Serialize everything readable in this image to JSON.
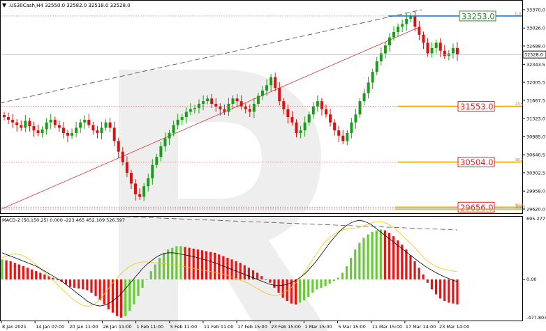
{
  "window": {
    "symbol_line": ".US30Cash,H4  32550.0 32582.0 32518.0 32528.0",
    "collapse_arrow": "▼"
  },
  "price_axis": {
    "ticks": [
      "33370.0",
      "33026.0",
      "32688.0",
      "32343.5",
      "32005.5",
      "31667.5",
      "31323.0",
      "30985.0",
      "30640.5",
      "30302.5",
      "29958.0",
      "29620.0"
    ],
    "current_price": "32528.0"
  },
  "fib_levels": [
    {
      "ratio": "0.0",
      "price_label": "33253.0",
      "line_color": "#1e78c8",
      "box_border": "#2e8b2e"
    },
    {
      "ratio": "23.6",
      "price_label": "31553.0",
      "line_color": "#f0a000",
      "box_border": "#e02020"
    },
    {
      "ratio": "38.2",
      "price_label": "30504.0",
      "line_color": "#f0a000",
      "box_border": "#e02020"
    },
    {
      "ratio": "50.0",
      "price_label": "29656.0",
      "line_color": "#f0a000",
      "box_border": "#e02020"
    },
    {
      "ratio": "100.0",
      "price_label": "",
      "line_color": "#f0a000",
      "box_border": ""
    }
  ],
  "macd": {
    "label": "MACD-2 (50,150,25) 0.000 -223.465 452.109 526.597",
    "axis": {
      "top": "695.277",
      "zero": "0.00",
      "bottom": "-477.803"
    }
  },
  "time_axis": [
    "8 Jan 2021",
    "14 Jan 07:00",
    "20 Jan 11:00",
    "26 Jan 11:00",
    "1 Feb 11:00",
    "5 Feb 11:00",
    "11 Feb 11:00",
    "17 Feb 15:00",
    "23 Feb 15:00",
    "1 Mar 15:00",
    "5 Mar 15:00",
    "11 Mar 15:00",
    "17 Mar 14:00",
    "23 Mar 14:00"
  ],
  "colors": {
    "bull": "#1a9e1a",
    "bear": "#e01010",
    "hist_green": "#66cc33",
    "hist_red": "#ee1111",
    "trend_red": "#e03030",
    "trend_dash": "#555555",
    "dotted_red": "#e05050",
    "watermark": "#e8e8e8"
  },
  "chart_data": {
    "type": "candlestick",
    "series": [
      {
        "name": "price",
        "close": [
          31350,
          31300,
          31250,
          31200,
          31150,
          31280,
          31180,
          31100,
          31050,
          31120,
          31250,
          31300,
          31200,
          31150,
          31050,
          31000,
          31050,
          31150,
          31250,
          31300,
          31200,
          31100,
          31050,
          31150,
          31250,
          31150,
          30900,
          30700,
          30500,
          30300,
          30100,
          29900,
          29850,
          30050,
          30200,
          30450,
          30600,
          30800,
          30950,
          31050,
          31200,
          31300,
          31350,
          31450,
          31500,
          31520,
          31600,
          31650,
          31700,
          31600,
          31550,
          31500,
          31450,
          31600,
          31700,
          31650,
          31550,
          31500,
          31450,
          31600,
          31750,
          31850,
          31950,
          32100,
          31900,
          31650,
          31500,
          31350,
          31250,
          31050,
          31100,
          31250,
          31400,
          31550,
          31650,
          31500,
          31400,
          31250,
          31100,
          31000,
          30900,
          31050,
          31250,
          31400,
          31650,
          31800,
          32000,
          32200,
          32400,
          32550,
          32700,
          32850,
          32950,
          33050,
          33100,
          33200,
          33253,
          33050,
          32900,
          32750,
          32550,
          32650,
          32750,
          32600,
          32500,
          32550,
          32650,
          32528
        ]
      }
    ],
    "price_min": 29620,
    "price_max": 33370,
    "macd_hist": [
      240,
      230,
      220,
      200,
      180,
      160,
      140,
      120,
      100,
      80,
      60,
      40,
      20,
      -10,
      -30,
      -60,
      -90,
      -100,
      -110,
      -120,
      -130,
      -160,
      -200,
      -250,
      -300,
      -360,
      -400,
      -440,
      -460,
      -440,
      -380,
      -300,
      -200,
      -100,
      0,
      100,
      180,
      260,
      320,
      360,
      380,
      400,
      400,
      390,
      380,
      370,
      360,
      350,
      340,
      330,
      320,
      300,
      280,
      260,
      240,
      220,
      200,
      170,
      140,
      110,
      80,
      40,
      0,
      -40,
      -100,
      -160,
      -220,
      -260,
      -290,
      -300,
      -280,
      -250,
      -210,
      -160,
      -120,
      -100,
      -80,
      -50,
      -20,
      20,
      80,
      160,
      260,
      360,
      440,
      500,
      540,
      570,
      590,
      600,
      590,
      560,
      520,
      470,
      420,
      360,
      290,
      220,
      140,
      60,
      -40,
      -120,
      -180,
      -230,
      -260,
      -280,
      -290,
      -300
    ],
    "macd_signal": [
      260,
      280,
      300,
      310,
      300,
      280,
      250,
      210,
      170,
      120,
      70,
      20,
      -30,
      -80,
      -130,
      -180,
      -230,
      -270,
      -300,
      -320,
      -320,
      -300,
      -260,
      -200,
      -130,
      -60,
      0,
      60,
      110,
      150,
      180,
      200,
      210,
      210,
      205,
      200,
      195,
      190,
      185,
      180,
      170,
      160,
      150,
      140,
      130,
      120,
      110,
      100,
      90,
      80,
      70,
      60,
      40,
      20,
      0,
      -20,
      -40,
      -70,
      -100,
      -130,
      -160,
      -180,
      -190,
      -190,
      -170,
      -140,
      -100,
      -50,
      10,
      80,
      160,
      240,
      320,
      400,
      460,
      510,
      550,
      580,
      600,
      610,
      615,
      620,
      630,
      650,
      670,
      690,
      695,
      690,
      670,
      640,
      600,
      550,
      500,
      450,
      400,
      340,
      280,
      230,
      190,
      160,
      140,
      120,
      110,
      100,
      95
    ],
    "macd_main": [
      320,
      300,
      280,
      260,
      240,
      220,
      200,
      180,
      160,
      130,
      100,
      70,
      40,
      10,
      -20,
      -60,
      -100,
      -140,
      -180,
      -220,
      -260,
      -290,
      -310,
      -320,
      -310,
      -290,
      -260,
      -220,
      -170,
      -110,
      -50,
      10,
      70,
      130,
      180,
      220,
      260,
      290,
      310,
      320,
      320,
      315,
      305,
      295,
      285,
      275,
      260,
      245,
      230,
      215,
      200,
      180,
      160,
      140,
      120,
      100,
      80,
      60,
      40,
      20,
      0,
      -20,
      -40,
      -60,
      -70,
      -75,
      -70,
      -60,
      -40,
      -10,
      20,
      60,
      110,
      170,
      230,
      300,
      370,
      440,
      500,
      560,
      610,
      650,
      680,
      700,
      710,
      700,
      680,
      650,
      610,
      570,
      530,
      490,
      450,
      410,
      370,
      330,
      290,
      250,
      210,
      175,
      140,
      110,
      80,
      55,
      30,
      10,
      -10,
      -25
    ]
  }
}
